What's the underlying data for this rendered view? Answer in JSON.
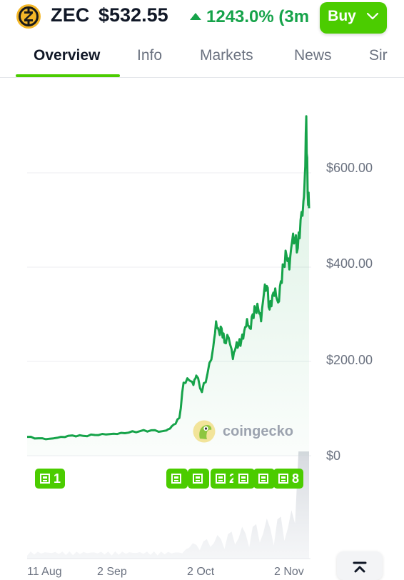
{
  "header": {
    "symbol": "ZEC",
    "price": "$532.55",
    "change": "1243.0% (3m",
    "buy_label": "Buy",
    "brand_green": "#4bcc00",
    "positive_color": "#16a34a"
  },
  "tabs": [
    {
      "label": "Overview",
      "active": true
    },
    {
      "label": "Info"
    },
    {
      "label": "Markets"
    },
    {
      "label": "News"
    },
    {
      "label": "Sir"
    }
  ],
  "watermark": "coingecko",
  "news_badges": [
    {
      "count": "1"
    },
    {
      "count": ""
    },
    {
      "count": ""
    },
    {
      "count": "2"
    },
    {
      "count": ""
    },
    {
      "count": ""
    },
    {
      "count": "8"
    }
  ],
  "chart_data": {
    "type": "area",
    "y_ticks": [
      "$600.00",
      "$400.00",
      "$200.00",
      "$0"
    ],
    "y_tick_values": [
      600,
      400,
      200,
      0
    ],
    "ylim": [
      0,
      730
    ],
    "grid": true,
    "x_ticks": [
      "11 Aug",
      "2 Sep",
      "2 Oct",
      "2 Nov"
    ],
    "series": [
      {
        "x": [
          0,
          0.04,
          0.08,
          0.12,
          0.16,
          0.2,
          0.24,
          0.28,
          0.32,
          0.36,
          0.4,
          0.44,
          0.48,
          0.5,
          0.52,
          0.54,
          0.555,
          0.575,
          0.59,
          0.6,
          0.62,
          0.64,
          0.66,
          0.67,
          0.68,
          0.69,
          0.7,
          0.715,
          0.73,
          0.74,
          0.75,
          0.76,
          0.77,
          0.78,
          0.79,
          0.8,
          0.81,
          0.82,
          0.83,
          0.84,
          0.85,
          0.86,
          0.87,
          0.88,
          0.89,
          0.9,
          0.91,
          0.92,
          0.93,
          0.94,
          0.95,
          0.96,
          0.97,
          0.98,
          0.985,
          0.99,
          0.995,
          1.0
        ],
        "values": [
          40,
          37,
          36,
          40,
          43,
          42,
          44,
          45,
          46,
          49,
          52,
          54,
          52,
          56,
          66,
          80,
          155,
          160,
          150,
          170,
          135,
          175,
          230,
          285,
          265,
          270,
          240,
          250,
          205,
          230,
          235,
          245,
          265,
          290,
          270,
          300,
          310,
          310,
          285,
          345,
          360,
          310,
          340,
          355,
          325,
          370,
          405,
          425,
          395,
          455,
          455,
          440,
          500,
          540,
          595,
          720,
          560,
          525
        ]
      }
    ]
  }
}
